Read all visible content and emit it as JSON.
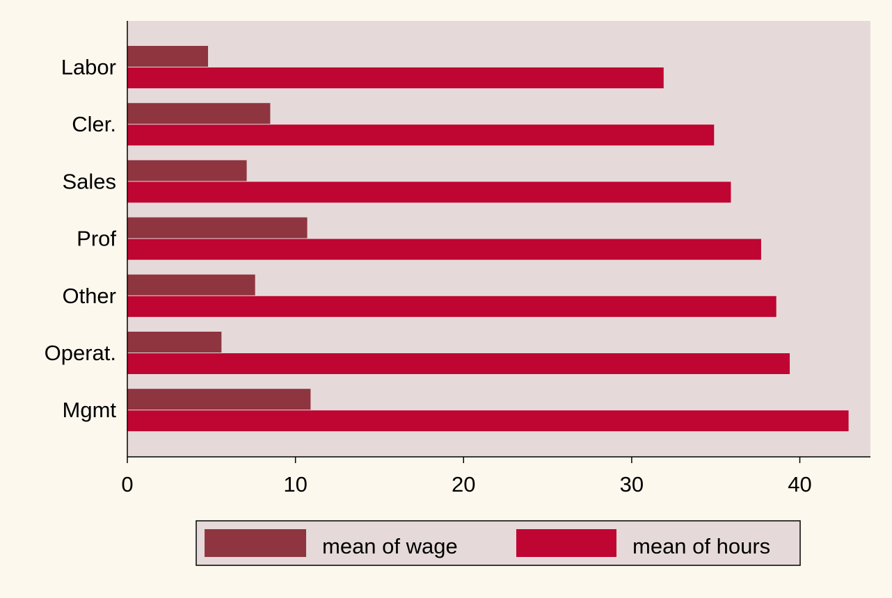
{
  "chart_data": {
    "type": "bar",
    "orientation": "horizontal",
    "title": "",
    "xlabel": "",
    "ylabel": "",
    "categories": [
      "Labor",
      "Cler.",
      "Sales",
      "Prof",
      "Other",
      "Operat.",
      "Mgmt"
    ],
    "series": [
      {
        "name": "mean of wage",
        "color": "#8f3540",
        "values": [
          4.8,
          8.5,
          7.1,
          10.7,
          7.6,
          5.6,
          10.9
        ]
      },
      {
        "name": "mean of hours",
        "color": "#bf0532",
        "values": [
          31.9,
          34.9,
          35.9,
          37.7,
          38.6,
          39.4,
          42.9
        ]
      }
    ],
    "xlim": [
      0,
      44.2
    ],
    "xticks": [
      0,
      10,
      20,
      30,
      40
    ],
    "grid": false,
    "legend_position": "bottom",
    "plot_background": "#e5dad9",
    "page_background": "#fdf8ee"
  }
}
